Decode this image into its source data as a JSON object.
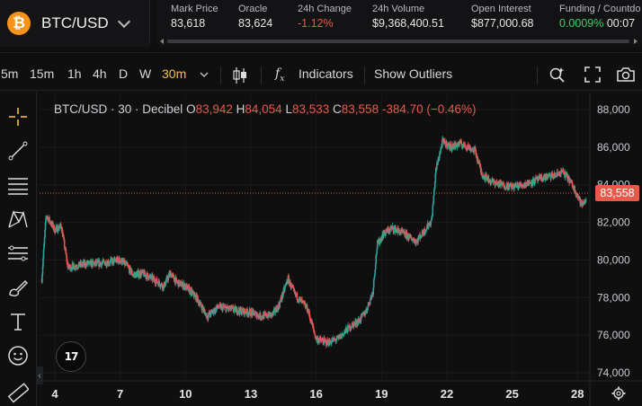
{
  "header": {
    "pair": "BTC/USD",
    "coin_symbol": "₿",
    "coin_color": "#f7931a",
    "stats": [
      {
        "label": "Mark Price",
        "value": "83,618",
        "tone": "neutral"
      },
      {
        "label": "Oracle",
        "value": "83,624",
        "tone": "neutral"
      },
      {
        "label": "24h Change",
        "value": "-1.12%",
        "tone": "red"
      },
      {
        "label": "24h Volume",
        "value": "$9,368,400.51",
        "tone": "neutral"
      },
      {
        "label": "Open Interest",
        "value": "$877,000.68",
        "tone": "neutral"
      },
      {
        "label": "Funding / Countdo",
        "value": "0.0009%",
        "tone": "green",
        "extra": "00:07"
      }
    ]
  },
  "toolbar": {
    "intervals": [
      "5m",
      "15m",
      "1h",
      "4h",
      "D",
      "W",
      "30m"
    ],
    "active_interval": "30m",
    "indicators_label": "Indicators",
    "outliers_label": "Show Outliers"
  },
  "legend": {
    "title": "BTC/USD · 30 · Decibel",
    "o_key": "O",
    "o": "83,942",
    "h_key": "H",
    "h": "84,054",
    "l_key": "L",
    "l": "83,533",
    "c_key": "C",
    "c": "83,558",
    "change": "-384.70 (−0.46%)"
  },
  "price_tag": "83,558",
  "tv_logo": "17",
  "colors": {
    "up": "#26a69a",
    "down": "#ef5350",
    "accent": "#f5c242",
    "red": "#e8594a",
    "green": "#3fcf6a"
  },
  "chart_data": {
    "type": "candlestick",
    "x_tick_labels": [
      "4",
      "7",
      "10",
      "13",
      "16",
      "19",
      "22",
      "25",
      "28"
    ],
    "y_tick_labels": [
      "88,000",
      "86,000",
      "84,000",
      "82,000",
      "80,000",
      "78,000",
      "76,000",
      "74,000"
    ],
    "ylim": [
      74000,
      88000
    ],
    "last_price": 83558,
    "path": [
      [
        3.4,
        79000
      ],
      [
        3.6,
        82400
      ],
      [
        4.0,
        81600
      ],
      [
        4.3,
        81800
      ],
      [
        4.6,
        79600
      ],
      [
        5.0,
        79700
      ],
      [
        5.5,
        79800
      ],
      [
        6.0,
        79800
      ],
      [
        6.5,
        79900
      ],
      [
        7.0,
        80000
      ],
      [
        7.3,
        79700
      ],
      [
        7.6,
        79200
      ],
      [
        8.0,
        79300
      ],
      [
        8.5,
        79000
      ],
      [
        9.0,
        78600
      ],
      [
        9.3,
        79300
      ],
      [
        9.6,
        78800
      ],
      [
        10.0,
        78600
      ],
      [
        10.5,
        78000
      ],
      [
        11.0,
        77000
      ],
      [
        11.5,
        77500
      ],
      [
        12.0,
        77400
      ],
      [
        12.5,
        77300
      ],
      [
        13.0,
        77200
      ],
      [
        13.5,
        77000
      ],
      [
        14.0,
        77100
      ],
      [
        14.3,
        77600
      ],
      [
        14.7,
        79000
      ],
      [
        15.0,
        78200
      ],
      [
        15.3,
        77800
      ],
      [
        15.6,
        77400
      ],
      [
        16.0,
        75800
      ],
      [
        16.5,
        75600
      ],
      [
        17.0,
        75800
      ],
      [
        17.5,
        76400
      ],
      [
        18.0,
        76800
      ],
      [
        18.3,
        77300
      ],
      [
        18.6,
        78300
      ],
      [
        18.8,
        80800
      ],
      [
        19.1,
        81400
      ],
      [
        19.5,
        81700
      ],
      [
        20.0,
        81400
      ],
      [
        20.3,
        81200
      ],
      [
        20.6,
        81000
      ],
      [
        21.0,
        81600
      ],
      [
        21.3,
        82100
      ],
      [
        21.5,
        84800
      ],
      [
        21.8,
        86300
      ],
      [
        22.2,
        86000
      ],
      [
        22.6,
        86200
      ],
      [
        23.0,
        86000
      ],
      [
        23.3,
        85800
      ],
      [
        23.6,
        84600
      ],
      [
        24.0,
        84200
      ],
      [
        24.5,
        84000
      ],
      [
        25.0,
        83900
      ],
      [
        25.5,
        84000
      ],
      [
        26.0,
        84200
      ],
      [
        26.5,
        84400
      ],
      [
        27.0,
        84500
      ],
      [
        27.3,
        84700
      ],
      [
        27.6,
        84300
      ],
      [
        27.9,
        83700
      ],
      [
        28.2,
        82900
      ],
      [
        28.6,
        83600
      ]
    ]
  }
}
